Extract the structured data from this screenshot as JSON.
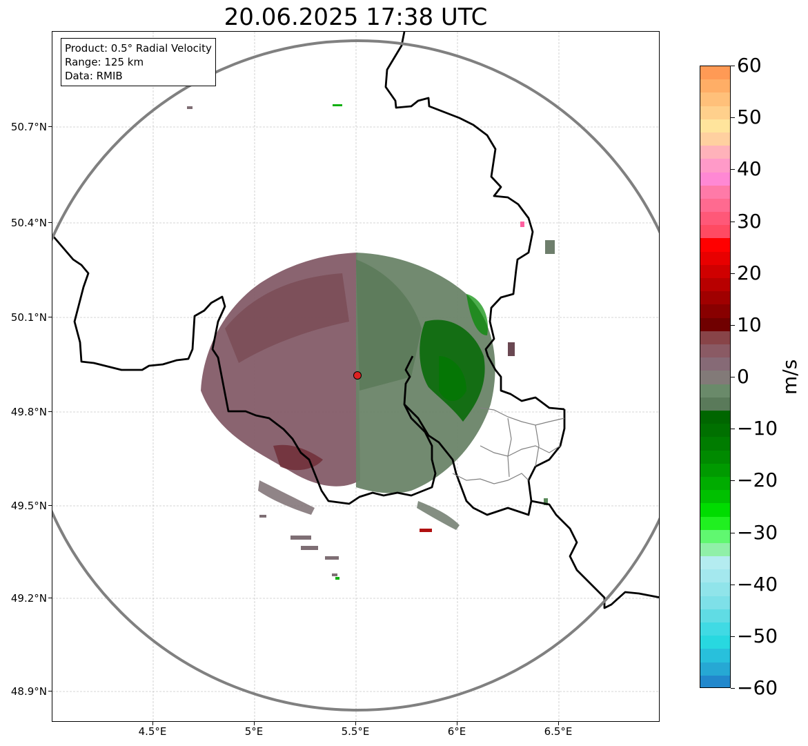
{
  "title": "20.06.2025 17:38 UTC",
  "info": {
    "product": "Product: 0.5° Radial Velocity",
    "range": "Range: 125 km",
    "data": "Data: RMIB"
  },
  "y_ticks": [
    "50.7°N",
    "50.4°N",
    "50.1°N",
    "49.8°N",
    "49.5°N",
    "49.2°N",
    "48.9°N"
  ],
  "x_ticks": [
    "4.5°E",
    "5°E",
    "5.5°E",
    "6°E",
    "6.5°E"
  ],
  "colorbar": {
    "unit": "m/s",
    "labels": [
      "60",
      "50",
      "40",
      "30",
      "20",
      "10",
      "0",
      "−10",
      "−20",
      "−30",
      "−40",
      "−50",
      "−60"
    ],
    "range": [
      -60,
      60
    ],
    "colors": [
      "#ff9a55",
      "#ffae66",
      "#ffc07a",
      "#ffd08c",
      "#ffe49c",
      "#ffd0a0",
      "#ffb2ba",
      "#ff9ac8",
      "#ff88d4",
      "#ff7aa8",
      "#ff6a90",
      "#ff5878",
      "#ff4a62",
      "#ff0000",
      "#e80000",
      "#d00000",
      "#b80000",
      "#a00000",
      "#880000",
      "#700000",
      "#884448",
      "#8a5a64",
      "#866a76",
      "#827a78",
      "#6a8a6a",
      "#5a7a5a",
      "#006600",
      "#007000",
      "#007c00",
      "#008a00",
      "#009a00",
      "#00ac00",
      "#00c000",
      "#00dc00",
      "#20f020",
      "#60f870",
      "#90f0a8",
      "#b4ecf0",
      "#a4e8ee",
      "#90e4ea",
      "#7ee0e8",
      "#60dce4",
      "#40dae4",
      "#28d8e0",
      "#28c0dc",
      "#26a8d4",
      "#2288cc"
    ]
  },
  "radar_site": {
    "lon": 5.505,
    "lat": 49.914
  },
  "map_extent": {
    "lon": [
      4.0,
      7.0
    ],
    "lat": [
      48.8,
      51.0
    ]
  },
  "colors": {
    "range_ring": "#808080",
    "borders": "#000000",
    "admin": "#808080",
    "site_marker": "#dd2222"
  }
}
